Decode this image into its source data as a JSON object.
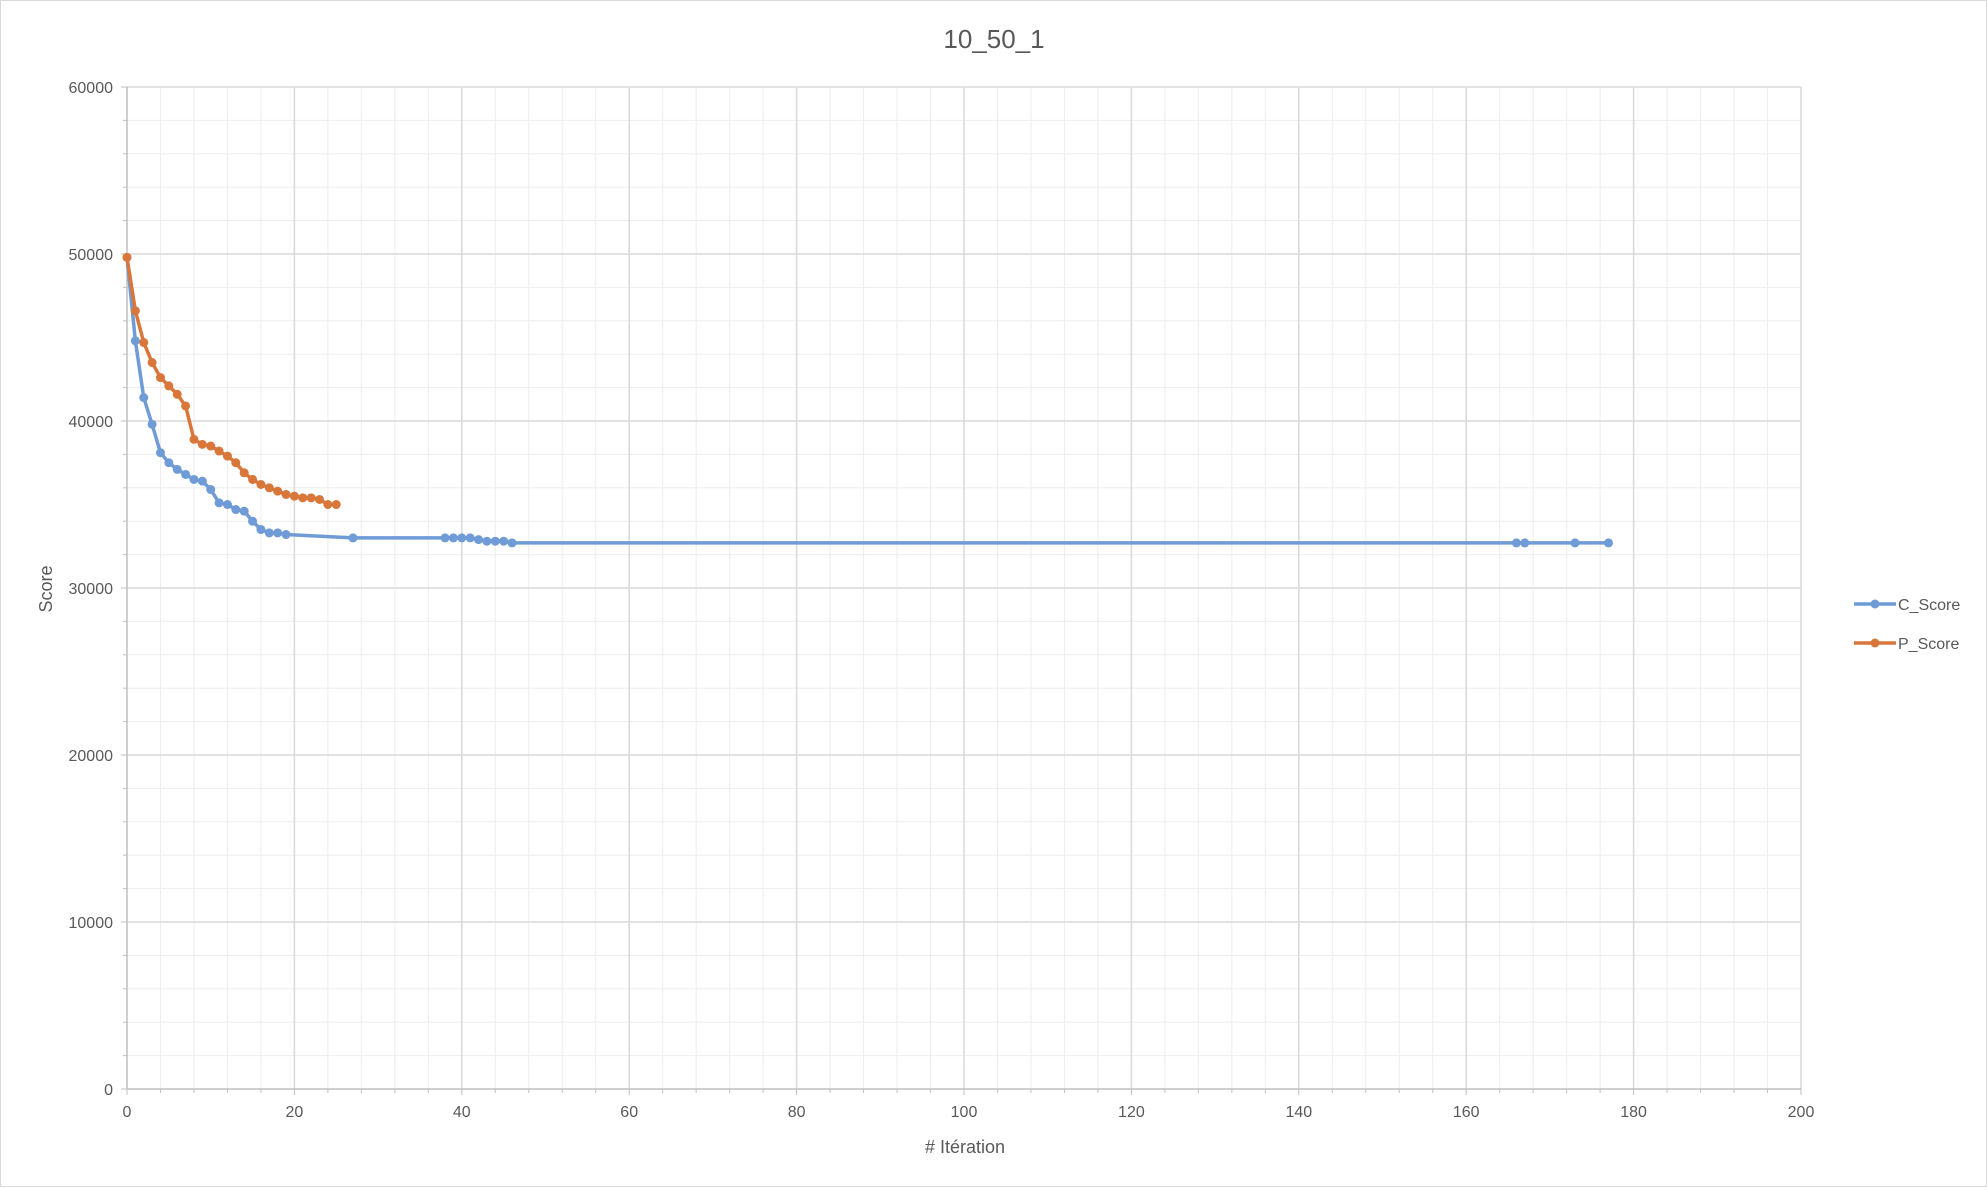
{
  "chart_data": {
    "type": "scatter",
    "title": "10_50_1",
    "xlabel": "# Itération",
    "ylabel": "Score",
    "xlim": [
      0,
      200
    ],
    "ylim": [
      0,
      60000
    ],
    "x_ticks": [
      "0",
      "20",
      "40",
      "60",
      "80",
      "100",
      "120",
      "140",
      "160",
      "180",
      "200"
    ],
    "y_ticks": [
      "0",
      "10000",
      "20000",
      "30000",
      "40000",
      "50000",
      "60000"
    ],
    "x_major_step": 20,
    "x_minor_step": 4,
    "y_major_step": 10000,
    "y_minor_step": 2000,
    "grid": true,
    "legend_position": "right",
    "series": [
      {
        "name": "C_Score",
        "color": "#6f9bd6",
        "x": [
          0,
          1,
          2,
          3,
          4,
          5,
          6,
          7,
          8,
          9,
          10,
          11,
          12,
          13,
          14,
          15,
          16,
          17,
          18,
          19,
          27,
          38,
          39,
          40,
          41,
          42,
          43,
          44,
          45,
          46,
          166,
          167,
          173,
          177
        ],
        "y": [
          49800,
          44800,
          41400,
          39800,
          38100,
          37500,
          37100,
          36800,
          36500,
          36400,
          35900,
          35100,
          35000,
          34700,
          34600,
          34000,
          33500,
          33300,
          33300,
          33200,
          33000,
          33000,
          33000,
          33000,
          33000,
          32900,
          32800,
          32800,
          32800,
          32700,
          32700,
          32700,
          32700,
          32700
        ]
      },
      {
        "name": "P_Score",
        "color": "#d9773a",
        "x": [
          0,
          1,
          2,
          3,
          4,
          5,
          6,
          7,
          8,
          9,
          10,
          11,
          12,
          13,
          14,
          15,
          16,
          17,
          18,
          19,
          20,
          21,
          22,
          23,
          24,
          25
        ],
        "y": [
          49800,
          46600,
          44700,
          43500,
          42600,
          42100,
          41600,
          40900,
          38900,
          38600,
          38500,
          38200,
          37900,
          37500,
          36900,
          36500,
          36200,
          36000,
          35800,
          35600,
          35500,
          35400,
          35400,
          35300,
          35000,
          35000
        ]
      }
    ]
  }
}
